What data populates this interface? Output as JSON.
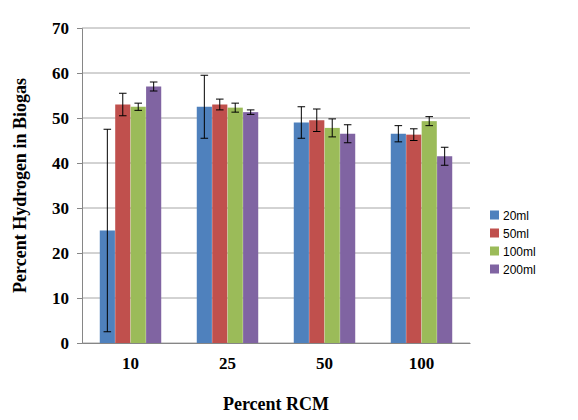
{
  "chart_data": {
    "type": "bar",
    "x_label": "Percent RCM",
    "y_label": "Percent Hydrogen in Biogas",
    "categories": [
      "10",
      "25",
      "50",
      "100"
    ],
    "series": [
      {
        "name": "20ml",
        "color": "#4f81bd",
        "values": [
          25,
          52.5,
          49,
          46.5
        ],
        "errors": [
          22.5,
          7,
          3.5,
          1.8
        ]
      },
      {
        "name": "50ml",
        "color": "#c0504d",
        "values": [
          53,
          53,
          49.5,
          46.3
        ],
        "errors": [
          2.5,
          1.2,
          2.5,
          1.3
        ]
      },
      {
        "name": "100ml",
        "color": "#9bbb59",
        "values": [
          52.5,
          52.3,
          47.8,
          49.3
        ],
        "errors": [
          0.8,
          1,
          2,
          1
        ]
      },
      {
        "name": "200ml",
        "color": "#8064a2",
        "values": [
          57,
          51.3,
          46.5,
          41.5
        ],
        "errors": [
          1,
          0.5,
          2,
          2
        ]
      }
    ],
    "ylim": [
      0,
      70
    ],
    "yticks": [
      0,
      10,
      20,
      30,
      40,
      50,
      60,
      70
    ],
    "grid": true,
    "legend": "right"
  }
}
